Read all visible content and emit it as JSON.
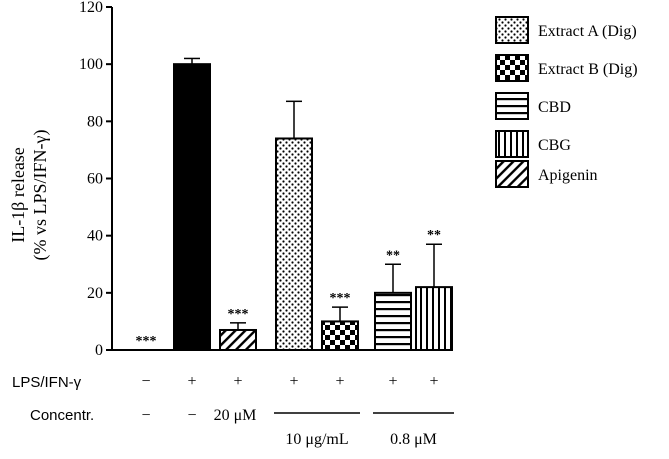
{
  "chart_data": {
    "type": "bar",
    "ylabel_line1": "IL-1β release",
    "ylabel_line2": "(% vs LPS/IFN-γ)",
    "ylim": [
      0,
      120
    ],
    "yticks": [
      "0",
      "20",
      "40",
      "60",
      "80",
      "100",
      "120"
    ],
    "bars": [
      {
        "value": 0,
        "error": 0,
        "significance": "***",
        "pattern": "none",
        "lps": "−",
        "conc": "−"
      },
      {
        "value": 100,
        "error": 2,
        "significance": "",
        "pattern": "solid",
        "lps": "+",
        "conc": "−"
      },
      {
        "value": 7,
        "error": 2.5,
        "significance": "***",
        "pattern": "diagonal",
        "lps": "+",
        "conc": "20 μM"
      },
      {
        "value": 74,
        "error": 13,
        "significance": "",
        "pattern": "dots",
        "lps": "+",
        "conc": ""
      },
      {
        "value": 10,
        "error": 5,
        "significance": "***",
        "pattern": "checker",
        "lps": "+",
        "conc": ""
      },
      {
        "value": 20,
        "error": 10,
        "significance": "**",
        "pattern": "horizontal",
        "lps": "+",
        "conc": ""
      },
      {
        "value": 22,
        "error": 15,
        "significance": "**",
        "pattern": "vertical",
        "lps": "+",
        "conc": ""
      }
    ],
    "legend": [
      {
        "label": "Extract A (Dig)",
        "pattern": "dots"
      },
      {
        "label": "Extract B (Dig)",
        "pattern": "checker"
      },
      {
        "label": "CBD",
        "pattern": "horizontal"
      },
      {
        "label": "CBG",
        "pattern": "vertical"
      },
      {
        "label": "Apigenin",
        "pattern": "diagonal"
      }
    ],
    "row_labels": {
      "lps": "LPS/IFN-γ",
      "conc": "Concentr."
    },
    "groups": [
      {
        "label": "10 μg/mL",
        "from": 3,
        "to": 4
      },
      {
        "label": "0.8 μM",
        "from": 5,
        "to": 6
      }
    ],
    "grid": false,
    "legend_position": "top-right"
  }
}
